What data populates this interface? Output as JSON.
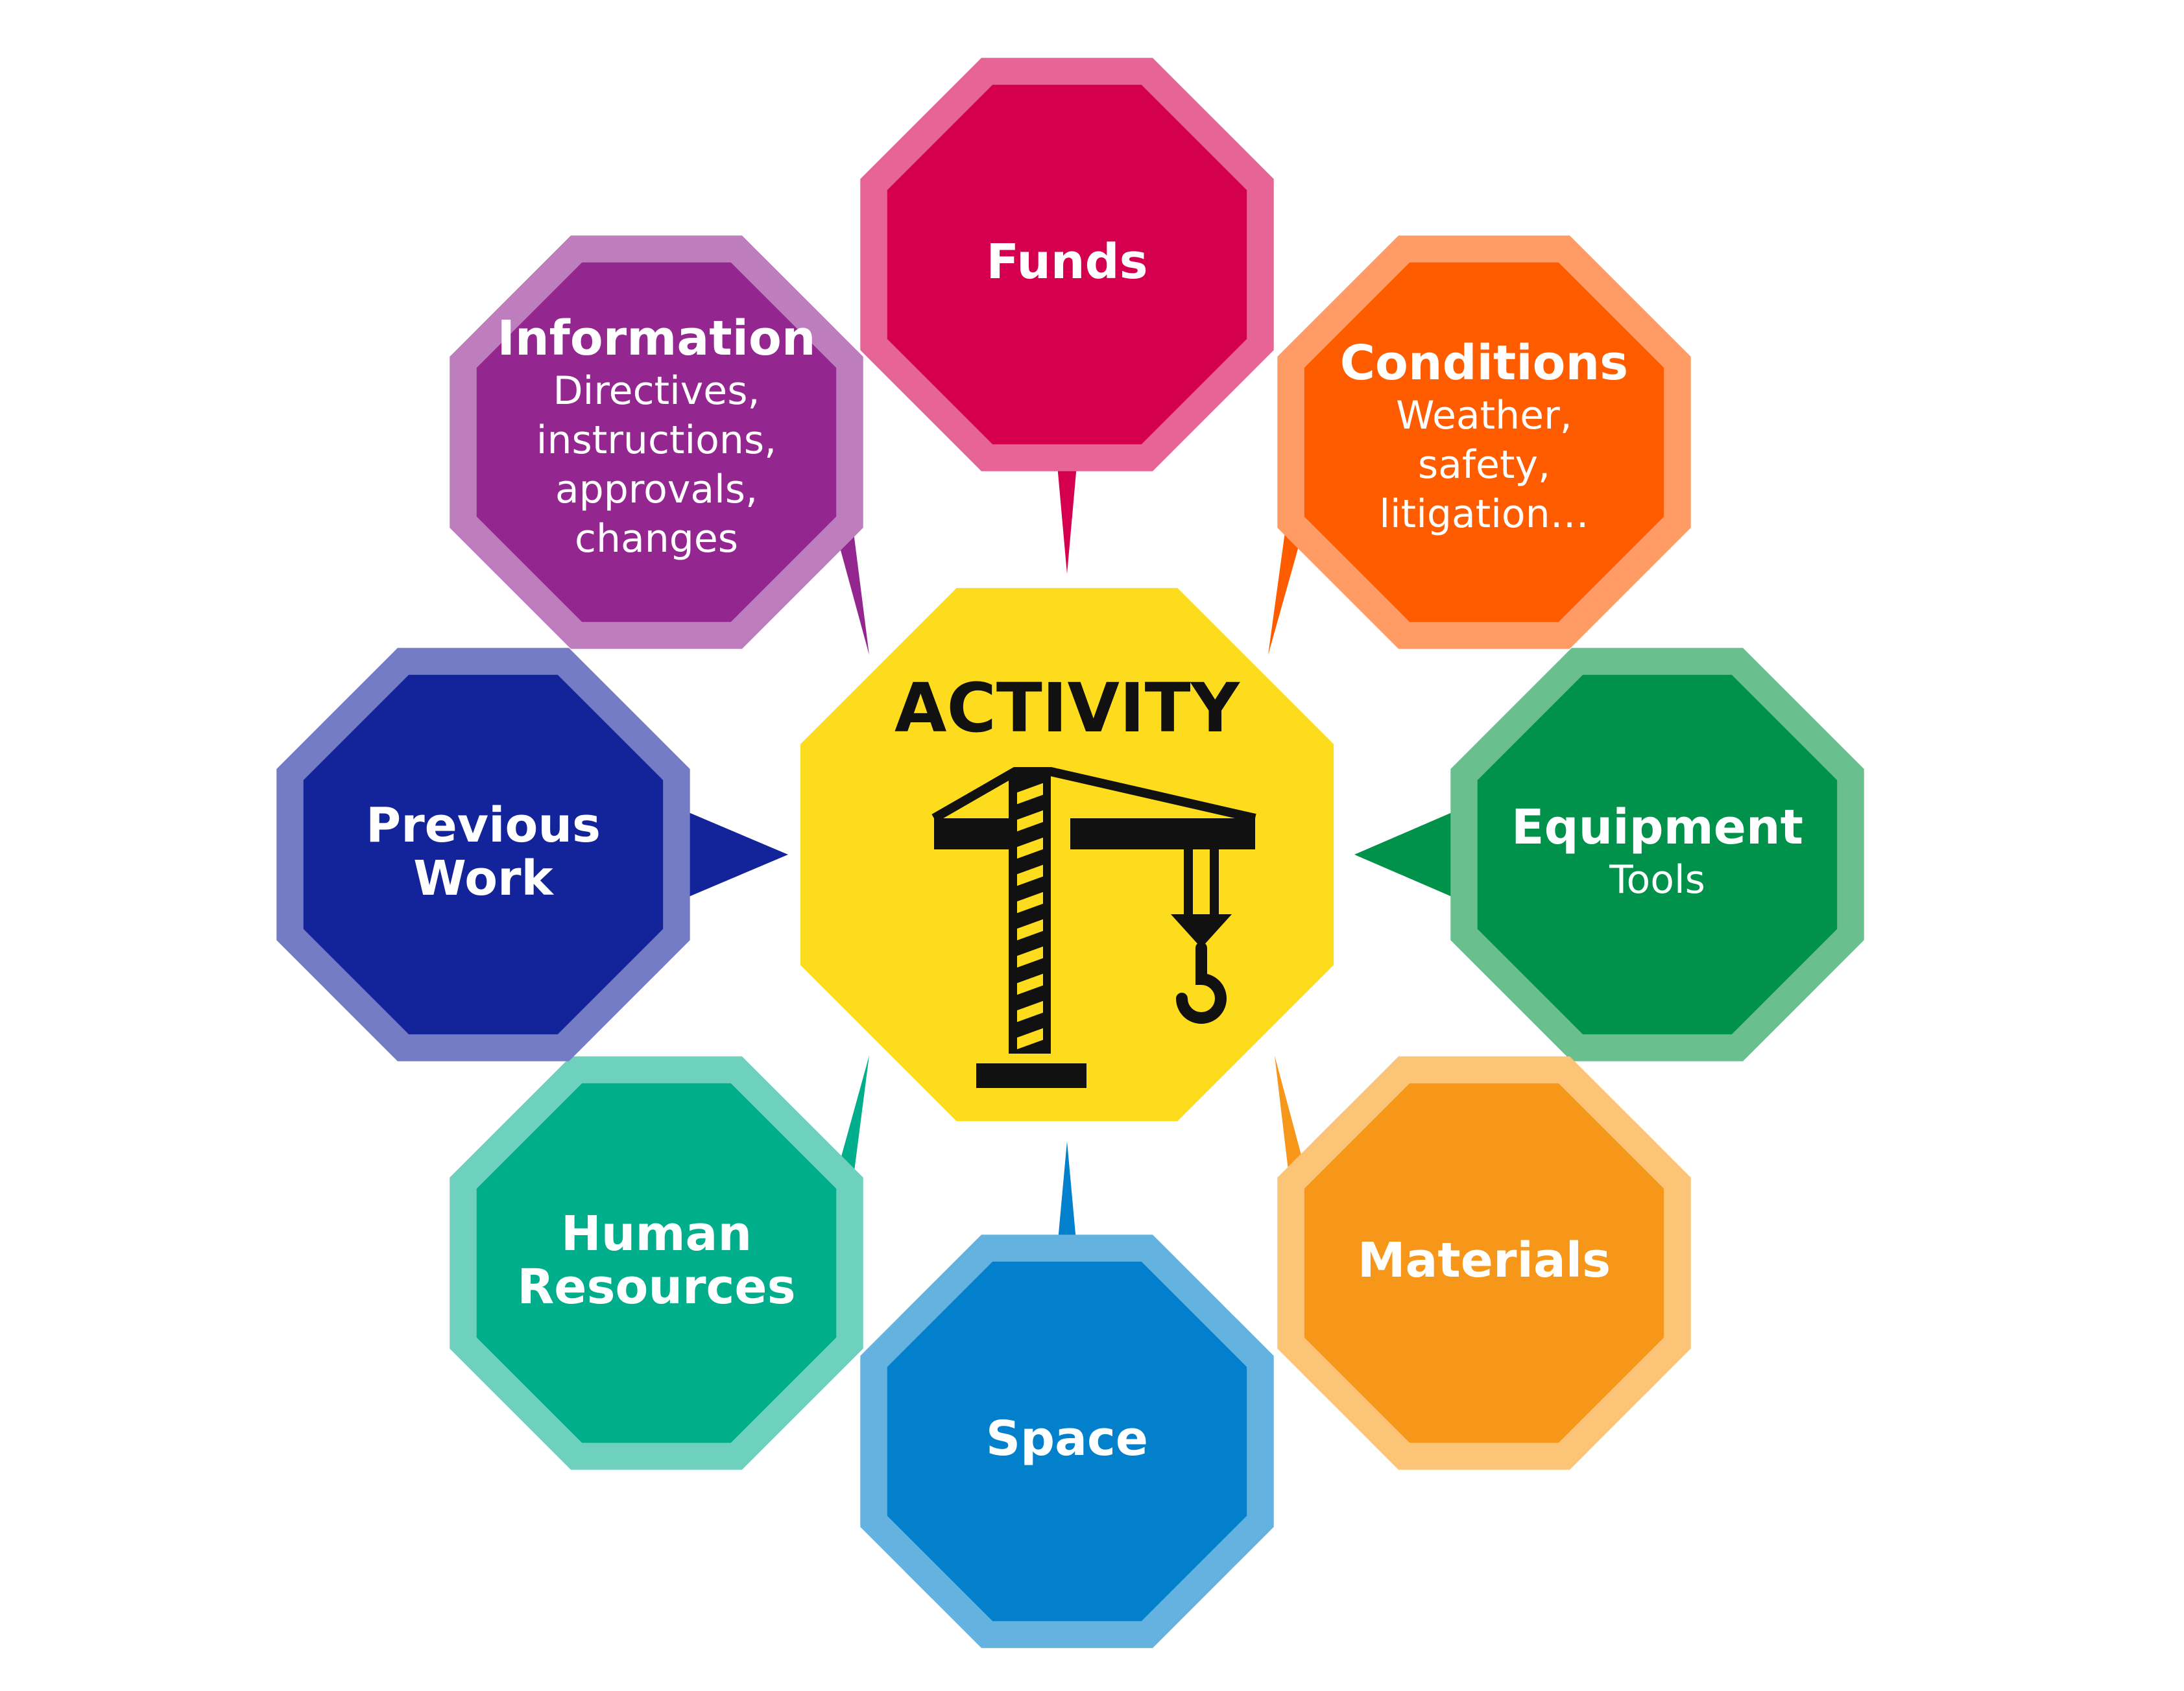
{
  "center": {
    "title": "ACTIVITY",
    "icon": "crane-icon",
    "fill": "#FCDC1C",
    "ink": "#111111"
  },
  "nodes": [
    {
      "id": "funds",
      "title_lines": [
        "Funds"
      ],
      "sub_lines": [],
      "fill": "#D4004F",
      "border": "#E76496"
    },
    {
      "id": "conditions",
      "title_lines": [
        "Conditions"
      ],
      "sub_lines": [
        "Weather,",
        "safety,",
        "litigation…"
      ],
      "fill": "#FF5C00",
      "border": "#FF9C66"
    },
    {
      "id": "equipment",
      "title_lines": [
        "Equipment"
      ],
      "sub_lines": [
        "Tools"
      ],
      "fill": "#00914A",
      "border": "#6ABF8E"
    },
    {
      "id": "materials",
      "title_lines": [
        "Materials"
      ],
      "sub_lines": [],
      "fill": "#F7971A",
      "border": "#FBC477"
    },
    {
      "id": "space",
      "title_lines": [
        "Space"
      ],
      "sub_lines": [],
      "fill": "#0280CC",
      "border": "#64B2E0"
    },
    {
      "id": "human-resources",
      "title_lines": [
        "Human",
        "Resources"
      ],
      "sub_lines": [],
      "fill": "#00AE8B",
      "border": "#6DD1BD"
    },
    {
      "id": "previous-work",
      "title_lines": [
        "Previous",
        "Work"
      ],
      "sub_lines": [],
      "fill": "#13239A",
      "border": "#737CC4"
    },
    {
      "id": "information",
      "title_lines": [
        "Information"
      ],
      "sub_lines": [
        "Directives,",
        "instructions,",
        "approvals,",
        "changes"
      ],
      "fill": "#93278F",
      "border": "#BE7EBE"
    }
  ]
}
